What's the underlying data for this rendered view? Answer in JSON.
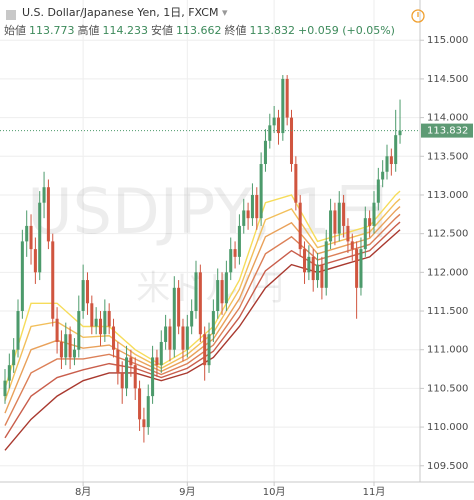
{
  "header": {
    "title": "U.S. Dollar/Japanese Yen, 1日, FXCM",
    "fields": [
      {
        "label": "始値",
        "value": "113.773"
      },
      {
        "label": "高値",
        "value": "114.233"
      },
      {
        "label": "安値",
        "value": "113.662"
      },
      {
        "label": "終値",
        "value": "113.832"
      }
    ],
    "change": "+0.059 (+0.05%)"
  },
  "chart_data": {
    "type": "candlestick",
    "watermark": "USDJPY, 1日",
    "watermark_sub": "米ドル/円",
    "up_color": "#4c9a6b",
    "down_color": "#d0553f",
    "grid": true,
    "xlim": [
      -1.15,
      95.6
    ],
    "ylim": [
      109.29,
      115.52
    ],
    "xticks": [
      {
        "value": 18,
        "label": "8月"
      },
      {
        "value": 42,
        "label": "9月"
      },
      {
        "value": 62,
        "label": "10月"
      },
      {
        "value": 85,
        "label": "11月"
      }
    ],
    "yticks": [
      {
        "value": 109.5,
        "label": "109.500"
      },
      {
        "value": 110,
        "label": "110.000"
      },
      {
        "value": 110.5,
        "label": "110.500"
      },
      {
        "value": 111,
        "label": "111.000"
      },
      {
        "value": 111.5,
        "label": "111.500"
      },
      {
        "value": 112,
        "label": "112.000"
      },
      {
        "value": 112.5,
        "label": "112.500"
      },
      {
        "value": 113,
        "label": "113.000"
      },
      {
        "value": 113.5,
        "label": "113.500"
      },
      {
        "value": 114,
        "label": "114.000"
      },
      {
        "value": 114.5,
        "label": "114.500"
      },
      {
        "value": 115,
        "label": "115.000"
      }
    ],
    "ohlc": [
      [
        110.4,
        110.75,
        110.3,
        110.6
      ],
      [
        110.6,
        110.95,
        110.5,
        110.8
      ],
      [
        110.8,
        111.15,
        110.7,
        111.0
      ],
      [
        111.0,
        111.65,
        110.9,
        111.5
      ],
      [
        111.5,
        112.55,
        111.4,
        112.4
      ],
      [
        112.4,
        112.8,
        112.2,
        112.6
      ],
      [
        112.6,
        112.75,
        112.1,
        112.3
      ],
      [
        112.3,
        112.45,
        111.85,
        112.0
      ],
      [
        112.0,
        113.05,
        111.9,
        112.9
      ],
      [
        112.9,
        113.3,
        112.7,
        113.1
      ],
      [
        113.1,
        113.2,
        112.3,
        112.4
      ],
      [
        112.4,
        112.5,
        111.3,
        111.4
      ],
      [
        111.4,
        111.55,
        110.95,
        111.1
      ],
      [
        111.1,
        111.25,
        110.75,
        110.9
      ],
      [
        110.9,
        111.35,
        110.8,
        111.2
      ],
      [
        111.2,
        111.3,
        110.75,
        110.9
      ],
      [
        110.9,
        111.15,
        110.8,
        111.0
      ],
      [
        111.0,
        111.7,
        110.9,
        111.5
      ],
      [
        111.5,
        112.1,
        111.4,
        111.9
      ],
      [
        111.9,
        112.0,
        111.45,
        111.6
      ],
      [
        111.6,
        111.7,
        111.2,
        111.3
      ],
      [
        111.3,
        111.55,
        111.2,
        111.4
      ],
      [
        111.4,
        111.5,
        111.05,
        111.2
      ],
      [
        111.2,
        111.65,
        111.1,
        111.5
      ],
      [
        111.5,
        111.6,
        111.2,
        111.3
      ],
      [
        111.3,
        111.4,
        110.9,
        111.0
      ],
      [
        111.0,
        111.1,
        110.55,
        110.7
      ],
      [
        110.7,
        110.85,
        110.3,
        110.5
      ],
      [
        110.5,
        111.05,
        110.4,
        110.9
      ],
      [
        110.9,
        111.0,
        110.65,
        110.8
      ],
      [
        110.8,
        110.9,
        110.35,
        110.5
      ],
      [
        110.5,
        110.6,
        109.95,
        110.1
      ],
      [
        110.1,
        110.25,
        109.8,
        110.0
      ],
      [
        110.0,
        110.55,
        109.9,
        110.4
      ],
      [
        110.4,
        111.05,
        110.3,
        110.9
      ],
      [
        110.9,
        111.0,
        110.65,
        110.8
      ],
      [
        110.8,
        111.25,
        110.7,
        111.1
      ],
      [
        111.1,
        111.45,
        111.0,
        111.3
      ],
      [
        111.3,
        111.4,
        110.85,
        111.0
      ],
      [
        111.0,
        111.95,
        110.9,
        111.8
      ],
      [
        111.8,
        111.9,
        111.2,
        111.3
      ],
      [
        111.3,
        111.4,
        110.85,
        111.0
      ],
      [
        111.0,
        111.45,
        110.9,
        111.3
      ],
      [
        111.3,
        111.65,
        111.2,
        111.5
      ],
      [
        111.5,
        112.15,
        111.4,
        112.0
      ],
      [
        112.0,
        112.1,
        111.1,
        111.2
      ],
      [
        111.2,
        111.3,
        110.6,
        110.8
      ],
      [
        110.8,
        111.35,
        110.7,
        111.2
      ],
      [
        111.2,
        111.65,
        111.1,
        111.5
      ],
      [
        111.5,
        112.05,
        111.4,
        111.9
      ],
      [
        111.9,
        112.0,
        111.45,
        111.6
      ],
      [
        111.6,
        112.15,
        111.5,
        112.0
      ],
      [
        112.0,
        112.45,
        111.9,
        112.3
      ],
      [
        112.3,
        112.4,
        112.05,
        112.2
      ],
      [
        112.2,
        112.75,
        112.1,
        112.6
      ],
      [
        112.6,
        112.95,
        112.5,
        112.8
      ],
      [
        112.8,
        112.9,
        112.55,
        112.7
      ],
      [
        112.7,
        113.15,
        112.6,
        113.0
      ],
      [
        113.0,
        113.1,
        112.55,
        112.7
      ],
      [
        112.7,
        113.55,
        112.6,
        113.4
      ],
      [
        113.4,
        113.85,
        113.3,
        113.7
      ],
      [
        113.7,
        114.05,
        113.6,
        113.9
      ],
      [
        113.9,
        114.15,
        113.8,
        114.0
      ],
      [
        114.0,
        114.1,
        113.65,
        113.8
      ],
      [
        113.8,
        114.55,
        113.7,
        114.5
      ],
      [
        114.5,
        114.55,
        113.9,
        114.0
      ],
      [
        114.0,
        114.1,
        113.3,
        113.4
      ],
      [
        113.4,
        113.5,
        112.8,
        112.9
      ],
      [
        112.9,
        113.0,
        112.2,
        112.3
      ],
      [
        112.3,
        112.4,
        111.85,
        112.0
      ],
      [
        112.0,
        112.35,
        111.9,
        112.2
      ],
      [
        112.2,
        112.3,
        111.75,
        111.9
      ],
      [
        111.9,
        112.25,
        111.8,
        112.1
      ],
      [
        112.1,
        112.2,
        111.65,
        111.8
      ],
      [
        111.8,
        112.55,
        111.7,
        112.4
      ],
      [
        112.4,
        112.95,
        112.3,
        112.8
      ],
      [
        112.8,
        112.9,
        112.35,
        112.5
      ],
      [
        112.5,
        113.05,
        112.4,
        112.9
      ],
      [
        112.9,
        113.0,
        112.45,
        112.6
      ],
      [
        112.6,
        112.7,
        112.25,
        112.4
      ],
      [
        112.4,
        112.5,
        112.15,
        112.3
      ],
      [
        112.3,
        112.4,
        111.4,
        111.8
      ],
      [
        111.8,
        112.45,
        111.7,
        112.3
      ],
      [
        112.3,
        112.85,
        112.2,
        112.7
      ],
      [
        112.7,
        112.8,
        112.45,
        112.6
      ],
      [
        112.6,
        113.05,
        112.5,
        112.9
      ],
      [
        112.9,
        113.35,
        112.8,
        113.2
      ],
      [
        113.2,
        113.45,
        113.1,
        113.3
      ],
      [
        113.3,
        113.65,
        113.2,
        113.5
      ],
      [
        113.5,
        113.6,
        113.25,
        113.4
      ],
      [
        113.4,
        114.1,
        113.3,
        113.773
      ],
      [
        113.773,
        114.233,
        113.662,
        113.832
      ]
    ],
    "ribbon": {
      "x": [
        0,
        6,
        12,
        18,
        24,
        30,
        36,
        42,
        48,
        54,
        60,
        66,
        72,
        78,
        84,
        90,
        91
      ],
      "series": [
        {
          "color": "#f6dc5a",
          "values": [
            110.5,
            111.6,
            111.6,
            111.3,
            111.3,
            111.0,
            110.8,
            111.0,
            111.3,
            111.9,
            112.9,
            113.0,
            112.4,
            112.5,
            112.6,
            113.0,
            113.05
          ]
        },
        {
          "color": "#f2bf5b",
          "values": [
            110.34,
            111.3,
            111.36,
            111.16,
            111.18,
            110.94,
            110.76,
            110.94,
            111.22,
            111.78,
            112.68,
            112.82,
            112.32,
            112.42,
            112.52,
            112.9,
            112.95
          ]
        },
        {
          "color": "#e9a15a",
          "values": [
            110.18,
            111.0,
            111.12,
            111.02,
            111.06,
            110.88,
            110.72,
            110.88,
            111.14,
            111.66,
            112.46,
            112.64,
            112.24,
            112.34,
            112.44,
            112.8,
            112.85
          ]
        },
        {
          "color": "#dc8058",
          "values": [
            110.02,
            110.7,
            110.88,
            110.88,
            110.94,
            110.82,
            110.68,
            110.82,
            111.06,
            111.54,
            112.24,
            112.46,
            112.16,
            112.26,
            112.36,
            112.7,
            112.75
          ]
        },
        {
          "color": "#c95e4c",
          "values": [
            109.86,
            110.4,
            110.64,
            110.74,
            110.82,
            110.76,
            110.64,
            110.76,
            110.98,
            111.42,
            112.02,
            112.28,
            112.08,
            112.18,
            112.28,
            112.6,
            112.65
          ]
        },
        {
          "color": "#a9392f",
          "values": [
            109.7,
            110.1,
            110.4,
            110.6,
            110.7,
            110.7,
            110.6,
            110.7,
            110.9,
            111.3,
            111.8,
            112.1,
            112.0,
            112.1,
            112.2,
            112.5,
            112.55
          ]
        }
      ]
    }
  }
}
